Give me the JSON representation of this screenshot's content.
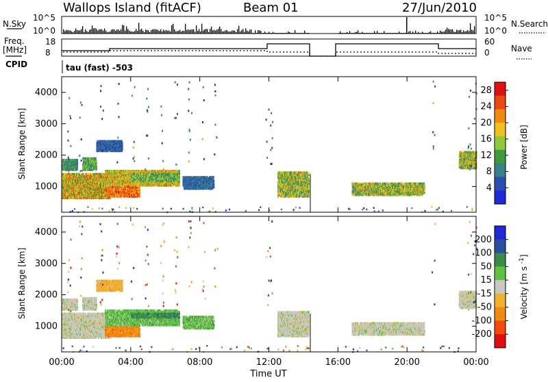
{
  "header": {
    "title": "Wallops Island (fitACF)",
    "beam": "Beam 01",
    "date": "27/Jun/2010"
  },
  "aux_panels": {
    "nsky_label": "N.Sky",
    "nsky_ticks": [
      "10^5",
      "10^0"
    ],
    "nsearch_label": "N.Search",
    "nsearch_ticks": [
      "10^5",
      "10^0"
    ],
    "freq_label_1": "Freq.",
    "freq_label_2": "[MHz]",
    "freq_ticks": [
      "18",
      "8"
    ],
    "nave_label": "Nave",
    "nave_ticks": [
      "60",
      "0"
    ],
    "cpid_label": "CPID",
    "cpid_value": "tau (fast) -503"
  },
  "colors": {
    "power": [
      "#1e2ad8",
      "#2a4fb0",
      "#3a7f8a",
      "#3e9a3e",
      "#90c83a",
      "#f0c020",
      "#f08a10",
      "#e84a10",
      "#e01010"
    ],
    "velocity": [
      "#e01010",
      "#f04a10",
      "#f08a10",
      "#f0b030",
      "#c8c8c0",
      "#60c040",
      "#3a8a4a",
      "#2a4fa0",
      "#1e2ad8"
    ]
  },
  "chart_data": [
    {
      "type": "heatmap",
      "name": "power",
      "ylabel": "Slant Range [km]",
      "xlabel": "",
      "x_ticks": [
        "00:00",
        "04:00",
        "08:00",
        "12:00",
        "16:00",
        "20:00",
        "00:00"
      ],
      "x_range_hours": [
        0,
        24
      ],
      "y_ticks": [
        "1000",
        "2000",
        "3000",
        "4000"
      ],
      "ylim_km": [
        180,
        4500
      ],
      "colorbar_label": "Power [dB]",
      "colorbar_ticks": [
        "4",
        "8",
        "12",
        "16",
        "20",
        "24",
        "28"
      ],
      "colorbar_range": [
        0,
        30
      ],
      "regions": [
        {
          "t0": 0.0,
          "t1": 2.8,
          "r0": 600,
          "r1": 1400,
          "v0": 10,
          "v1": 26
        },
        {
          "t0": 0.0,
          "t1": 0.9,
          "r0": 1500,
          "r1": 1850,
          "v0": 6,
          "v1": 14
        },
        {
          "t0": 1.2,
          "t1": 2.0,
          "r0": 1500,
          "r1": 1900,
          "v0": 8,
          "v1": 16
        },
        {
          "t0": 2.0,
          "t1": 3.5,
          "r0": 2100,
          "r1": 2450,
          "v0": 3,
          "v1": 9
        },
        {
          "t0": 2.5,
          "t1": 4.5,
          "r0": 650,
          "r1": 1000,
          "v0": 18,
          "v1": 28
        },
        {
          "t0": 2.5,
          "t1": 6.8,
          "r0": 1000,
          "r1": 1500,
          "v0": 12,
          "v1": 24
        },
        {
          "t0": 4.0,
          "t1": 6.8,
          "r0": 1150,
          "r1": 1400,
          "v0": 8,
          "v1": 18
        },
        {
          "t0": 7.0,
          "t1": 8.8,
          "r0": 900,
          "r1": 1300,
          "v0": 4,
          "v1": 10
        },
        {
          "t0": 12.5,
          "t1": 14.3,
          "r0": 650,
          "r1": 1450,
          "v0": 8,
          "v1": 22
        },
        {
          "t0": 16.8,
          "t1": 21.0,
          "r0": 700,
          "r1": 1100,
          "v0": 8,
          "v1": 22
        },
        {
          "t0": 23.0,
          "t1": 24.0,
          "r0": 1550,
          "r1": 2100,
          "v0": 8,
          "v1": 22
        }
      ]
    },
    {
      "type": "heatmap",
      "name": "velocity",
      "ylabel": "Slant Range [km]",
      "xlabel": "Time UT",
      "x_ticks": [
        "00:00",
        "04:00",
        "08:00",
        "12:00",
        "16:00",
        "20:00",
        "00:00"
      ],
      "x_range_hours": [
        0,
        24
      ],
      "y_ticks": [
        "1000",
        "2000",
        "3000",
        "4000"
      ],
      "ylim_km": [
        180,
        4500
      ],
      "colorbar_label": "Velocity [m s^-1]",
      "colorbar_ticks": [
        "200",
        "100",
        "50",
        "15",
        "-15",
        "-50",
        "-100",
        "-200"
      ],
      "regions": [
        {
          "t0": 0.0,
          "t1": 2.8,
          "r0": 600,
          "r1": 1400,
          "c": 4
        },
        {
          "t0": 0.0,
          "t1": 0.9,
          "r0": 1500,
          "r1": 1850,
          "c": 4
        },
        {
          "t0": 1.2,
          "t1": 2.0,
          "r0": 1500,
          "r1": 1900,
          "c": 4
        },
        {
          "t0": 2.0,
          "t1": 3.5,
          "r0": 2100,
          "r1": 2450,
          "c": 3
        },
        {
          "t0": 2.5,
          "t1": 4.5,
          "r0": 650,
          "r1": 1000,
          "c": 2
        },
        {
          "t0": 2.5,
          "t1": 6.8,
          "r0": 1000,
          "r1": 1500,
          "c": 5
        },
        {
          "t0": 4.0,
          "t1": 6.8,
          "r0": 1250,
          "r1": 1400,
          "c": 6
        },
        {
          "t0": 7.0,
          "t1": 8.8,
          "r0": 900,
          "r1": 1300,
          "c": 5
        },
        {
          "t0": 12.5,
          "t1": 14.3,
          "r0": 650,
          "r1": 1450,
          "c": 4
        },
        {
          "t0": 16.8,
          "t1": 21.0,
          "r0": 700,
          "r1": 1100,
          "c": 4
        },
        {
          "t0": 23.0,
          "t1": 24.0,
          "r0": 1550,
          "r1": 2100,
          "c": 4
        }
      ]
    }
  ]
}
